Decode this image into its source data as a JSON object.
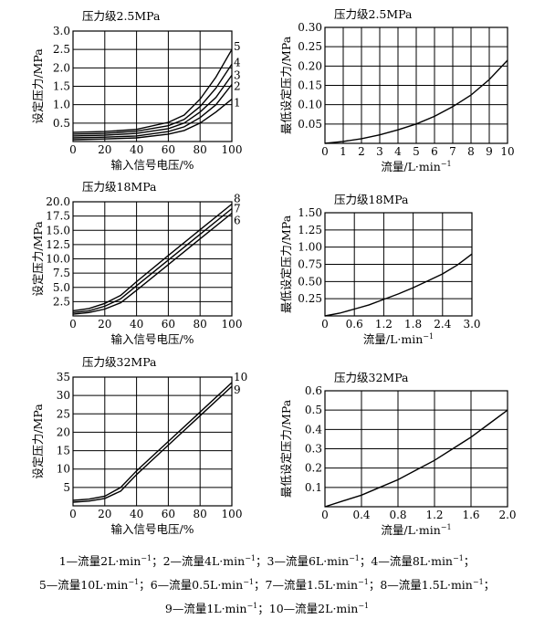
{
  "chart_data": [
    {
      "type": "line",
      "title": "压力级2.5MPa",
      "xlabel": "输入信号电压/%",
      "ylabel": "设定压力/MPa",
      "xlim": [
        0,
        100
      ],
      "ylim": [
        0,
        3.0
      ],
      "xticks": [
        0,
        20,
        40,
        60,
        80,
        100
      ],
      "xtick_labels": [
        "0",
        "20",
        "40",
        "60",
        "80",
        "100"
      ],
      "yticks": [
        0.5,
        1.0,
        1.5,
        2.0,
        2.5,
        3.0
      ],
      "ytick_labels": [
        "0.5",
        "1.0",
        "1.5",
        "2.0",
        "2.5",
        "3.0"
      ],
      "grid": true,
      "series": [
        {
          "name": "1",
          "x": [
            0,
            20,
            40,
            60,
            70,
            80,
            90,
            100
          ],
          "values": [
            0.05,
            0.07,
            0.1,
            0.2,
            0.3,
            0.5,
            0.8,
            1.15
          ]
        },
        {
          "name": "2",
          "x": [
            0,
            20,
            40,
            60,
            70,
            80,
            90,
            100
          ],
          "values": [
            0.1,
            0.12,
            0.15,
            0.27,
            0.4,
            0.65,
            1.0,
            1.55
          ]
        },
        {
          "name": "3",
          "x": [
            0,
            20,
            40,
            60,
            70,
            80,
            90,
            100
          ],
          "values": [
            0.15,
            0.17,
            0.22,
            0.35,
            0.5,
            0.8,
            1.2,
            1.8
          ]
        },
        {
          "name": "4",
          "x": [
            0,
            20,
            40,
            60,
            70,
            80,
            90,
            100
          ],
          "values": [
            0.2,
            0.22,
            0.28,
            0.43,
            0.6,
            0.95,
            1.45,
            2.1
          ]
        },
        {
          "name": "5",
          "x": [
            0,
            20,
            40,
            60,
            70,
            80,
            90,
            100
          ],
          "values": [
            0.25,
            0.27,
            0.33,
            0.52,
            0.72,
            1.15,
            1.75,
            2.5
          ]
        }
      ]
    },
    {
      "type": "line",
      "title": "压力级2.5MPa",
      "xlabel": "流量/L·min",
      "xlabel_sup": "−1",
      "ylabel": "最低设定压力/MPa",
      "xlim": [
        0,
        10
      ],
      "ylim": [
        0,
        0.3
      ],
      "xticks": [
        0,
        1,
        2,
        3,
        4,
        5,
        6,
        7,
        8,
        9,
        10
      ],
      "xtick_labels": [
        "0",
        "1",
        "2",
        "3",
        "4",
        "5",
        "6",
        "7",
        "8",
        "9",
        "10"
      ],
      "yticks": [
        0.05,
        0.1,
        0.15,
        0.2,
        0.25,
        0.3
      ],
      "ytick_labels": [
        "0.05",
        "0.10",
        "0.15",
        "0.20",
        "0.25",
        "0.30"
      ],
      "grid": true,
      "series": [
        {
          "x": [
            0,
            1,
            2,
            3,
            4,
            5,
            6,
            7,
            8,
            9,
            10
          ],
          "values": [
            0.0,
            0.005,
            0.012,
            0.022,
            0.035,
            0.05,
            0.07,
            0.095,
            0.125,
            0.165,
            0.215
          ]
        }
      ]
    },
    {
      "type": "line",
      "title": "压力级18MPa",
      "xlabel": "输入信号电压/%",
      "ylabel": "设定压力/MPa",
      "xlim": [
        0,
        100
      ],
      "ylim": [
        0,
        20.0
      ],
      "xticks": [
        0,
        20,
        40,
        60,
        80,
        100
      ],
      "xtick_labels": [
        "0",
        "20",
        "40",
        "60",
        "80",
        "100"
      ],
      "yticks": [
        2.5,
        5.0,
        7.5,
        10.0,
        12.5,
        15.0,
        17.5,
        20.0
      ],
      "ytick_labels": [
        "2.5",
        "5.0",
        "7.5",
        "10.0",
        "12.5",
        "15.0",
        "17.5",
        "20.0"
      ],
      "grid": true,
      "series": [
        {
          "name": "6",
          "x": [
            0,
            10,
            20,
            30,
            40,
            60,
            80,
            100
          ],
          "values": [
            0.3,
            0.6,
            1.2,
            2.3,
            4.5,
            9.0,
            13.5,
            18.0
          ]
        },
        {
          "name": "7",
          "x": [
            0,
            10,
            20,
            30,
            40,
            60,
            80,
            100
          ],
          "values": [
            0.6,
            0.9,
            1.7,
            3.0,
            5.3,
            9.8,
            14.3,
            18.8
          ]
        },
        {
          "name": "8",
          "x": [
            0,
            10,
            20,
            30,
            40,
            60,
            80,
            100
          ],
          "values": [
            0.9,
            1.3,
            2.2,
            3.6,
            6.0,
            10.6,
            15.1,
            19.6
          ]
        }
      ]
    },
    {
      "type": "line",
      "title": "压力级18MPa",
      "xlabel": "流量/L·min",
      "xlabel_sup": "−1",
      "ylabel": "最低设定压力/MPa",
      "xlim": [
        0,
        3.0
      ],
      "ylim": [
        0,
        1.5
      ],
      "xticks": [
        0,
        0.6,
        1.2,
        1.8,
        2.4,
        3.0
      ],
      "xtick_labels": [
        "0",
        "0.6",
        "1.2",
        "1.8",
        "2.4",
        "3.0"
      ],
      "yticks": [
        0.25,
        0.5,
        0.75,
        1.0,
        1.25,
        1.5
      ],
      "ytick_labels": [
        "0.25",
        "0.50",
        "0.75",
        "1.00",
        "1.25",
        "1.50"
      ],
      "grid": true,
      "series": [
        {
          "x": [
            0,
            0.3,
            0.6,
            0.9,
            1.2,
            1.5,
            1.8,
            2.1,
            2.4,
            2.7,
            3.0
          ],
          "values": [
            0.0,
            0.04,
            0.1,
            0.16,
            0.24,
            0.32,
            0.41,
            0.51,
            0.61,
            0.74,
            0.9
          ]
        }
      ]
    },
    {
      "type": "line",
      "title": "压力级32MPa",
      "xlabel": "输入信号电压/%",
      "ylabel": "设定压力/MPa",
      "xlim": [
        0,
        100
      ],
      "ylim": [
        0,
        35
      ],
      "xticks": [
        0,
        20,
        40,
        60,
        80,
        100
      ],
      "xtick_labels": [
        "0",
        "20",
        "40",
        "60",
        "80",
        "100"
      ],
      "yticks": [
        5,
        10,
        15,
        20,
        25,
        30,
        35
      ],
      "ytick_labels": [
        "5",
        "10",
        "15",
        "20",
        "25",
        "30",
        "35"
      ],
      "grid": true,
      "series": [
        {
          "name": "9",
          "x": [
            0,
            10,
            20,
            30,
            40,
            60,
            80,
            100
          ],
          "values": [
            1.0,
            1.3,
            2.0,
            4.0,
            8.5,
            16.5,
            24.5,
            32.5
          ]
        },
        {
          "name": "10",
          "x": [
            0,
            10,
            20,
            30,
            40,
            60,
            80,
            100
          ],
          "values": [
            1.5,
            1.8,
            2.6,
            5.0,
            9.5,
            17.5,
            25.5,
            33.5
          ]
        }
      ]
    },
    {
      "type": "line",
      "title": "压力级32MPa",
      "xlabel": "流量/L·min",
      "xlabel_sup": "−1",
      "ylabel": "最低设定压力/MPa",
      "xlim": [
        0,
        2.0
      ],
      "ylim": [
        0,
        0.6
      ],
      "xticks": [
        0,
        0.4,
        0.8,
        1.2,
        1.6,
        2.0
      ],
      "xtick_labels": [
        "0",
        "0.4",
        "0.8",
        "1.2",
        "1.6",
        "2.0"
      ],
      "yticks": [
        0.1,
        0.2,
        0.3,
        0.4,
        0.5,
        0.6
      ],
      "ytick_labels": [
        "0.1",
        "0.2",
        "0.3",
        "0.4",
        "0.5",
        "0.6"
      ],
      "grid": true,
      "series": [
        {
          "x": [
            0,
            0.2,
            0.4,
            0.6,
            0.8,
            1.0,
            1.2,
            1.4,
            1.6,
            1.8,
            2.0
          ],
          "values": [
            0.0,
            0.03,
            0.06,
            0.1,
            0.14,
            0.19,
            0.24,
            0.3,
            0.36,
            0.43,
            0.5
          ]
        }
      ]
    }
  ],
  "legend": {
    "line1": [
      {
        "label": "1—流量2L·min",
        "sup": "−1",
        "sep": "；"
      },
      {
        "label": "2—流量4L·min",
        "sup": "−1",
        "sep": "；"
      },
      {
        "label": "3—流量6L·min",
        "sup": "−1",
        "sep": "；"
      },
      {
        "label": "4—流量8L·min",
        "sup": "−1",
        "sep": "；"
      }
    ],
    "line2": [
      {
        "label": "5—流量10L·min",
        "sup": "−1",
        "sep": "；"
      },
      {
        "label": "6—流量0.5L·min",
        "sup": "−1",
        "sep": "；"
      },
      {
        "label": "7—流量1.5L·min",
        "sup": "−1",
        "sep": "；"
      },
      {
        "label": "8—流量1.5L·min",
        "sup": "−1",
        "sep": "；"
      }
    ],
    "line3": [
      {
        "label": "9—流量1L·min",
        "sup": "−1",
        "sep": "；"
      },
      {
        "label": "10—流量2L·min",
        "sup": "−1",
        "sep": ""
      }
    ]
  }
}
